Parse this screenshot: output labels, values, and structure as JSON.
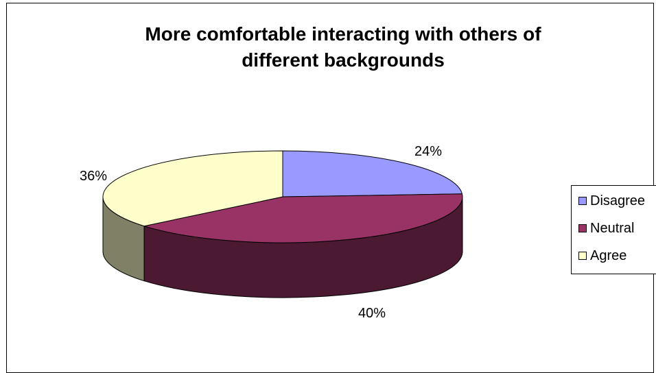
{
  "chart_data": {
    "type": "pie",
    "title_lines": [
      "More comfortable interacting with others of",
      "different backgrounds"
    ],
    "slices": [
      {
        "name": "Disagree",
        "value": 24,
        "label": "24%",
        "color": "#9999ff",
        "side_color": "#4c4c80"
      },
      {
        "name": "Neutral",
        "value": 40,
        "label": "40%",
        "color": "#993366",
        "side_color": "#4c1933"
      },
      {
        "name": "Agree",
        "value": 36,
        "label": "36%",
        "color": "#ffffcc",
        "side_color": "#808066"
      }
    ],
    "legend_position": "right",
    "three_d": true
  }
}
